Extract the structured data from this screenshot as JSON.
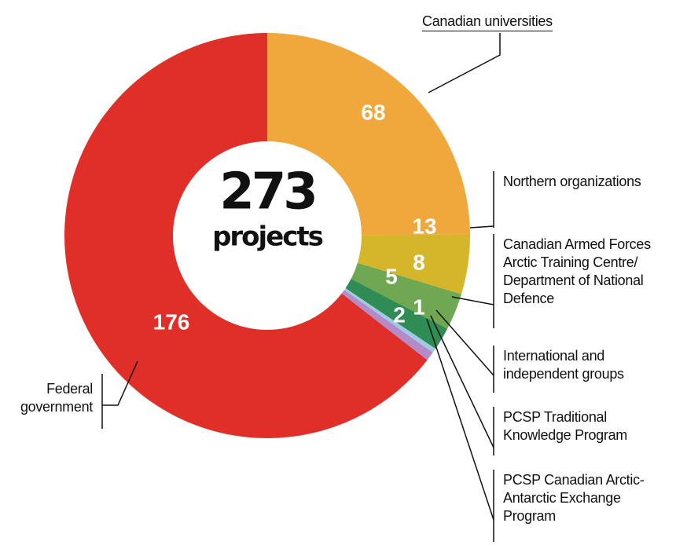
{
  "chart_data": {
    "type": "donut",
    "total": 273,
    "center_label": "projects",
    "categories": [
      "Canadian universities",
      "Northern organizations",
      "Canadian Armed Forces Arctic Training Centre/ Department of National Defence",
      "International and independent groups",
      "PCSP Traditional Knowledge Program",
      "PCSP Canadian Arctic-Antarctic Exchange Program",
      "Federal government"
    ],
    "values": [
      68,
      13,
      8,
      5,
      1,
      2,
      176
    ],
    "colors": [
      "#f0a83c",
      "#d5b62b",
      "#6fa752",
      "#2f8c55",
      "#9fc9e6",
      "#b48bc6",
      "#df2f28"
    ]
  }
}
